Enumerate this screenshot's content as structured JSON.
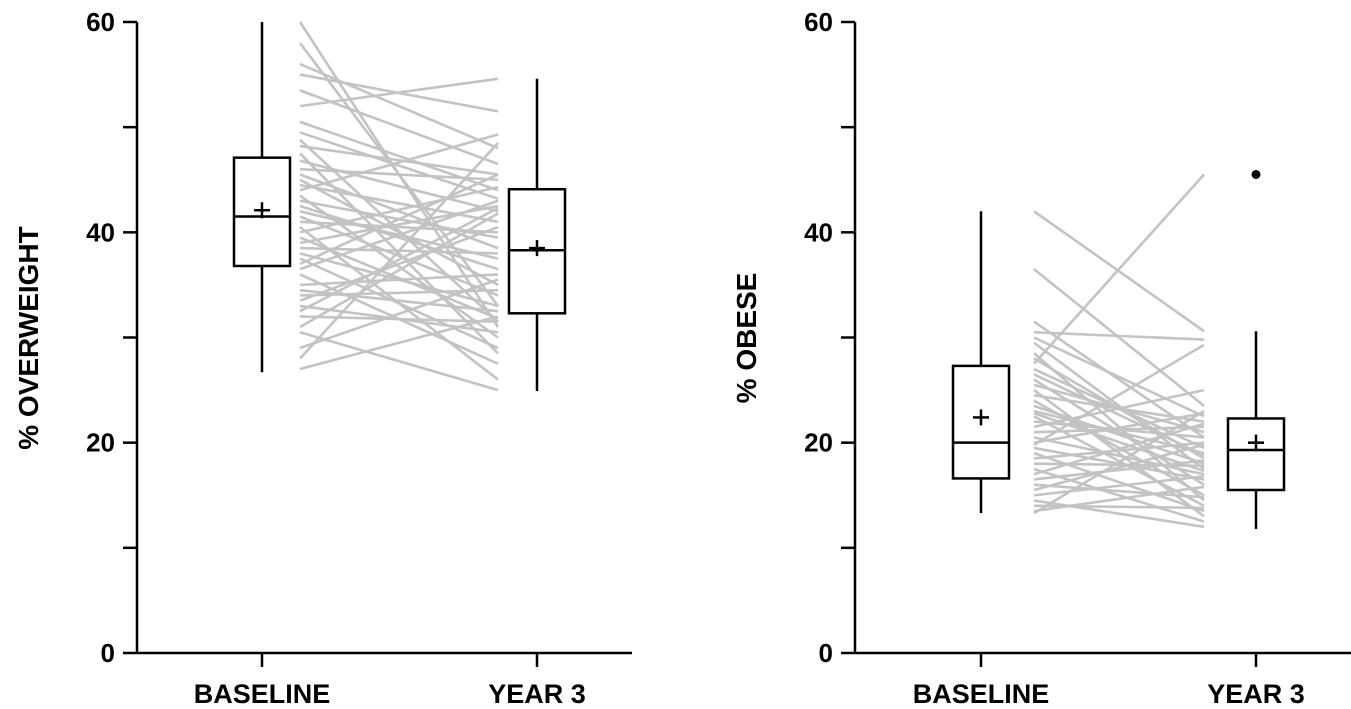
{
  "chart_data": [
    {
      "type": "box",
      "title": "",
      "xlabel": "",
      "ylabel": "% OVERWEIGHT",
      "ylim": [
        0,
        60
      ],
      "yticks": [
        0,
        10,
        20,
        30,
        40,
        50,
        60
      ],
      "ytick_labels": [
        "0",
        "",
        "20",
        "",
        "40",
        "",
        "60"
      ],
      "categories": [
        "BASELINE",
        "YEAR 3"
      ],
      "boxes": [
        {
          "category": "BASELINE",
          "min": 26.7,
          "q1": 36.8,
          "median": 41.5,
          "q3": 47.1,
          "max": 60.0,
          "mean": 42.1,
          "outliers": []
        },
        {
          "category": "YEAR 3",
          "min": 24.9,
          "q1": 32.3,
          "median": 38.3,
          "q3": 44.1,
          "max": 54.6,
          "mean": 38.5,
          "outliers": []
        }
      ],
      "paired_lines": [
        [
          60.0,
          31.0
        ],
        [
          58.0,
          33.0
        ],
        [
          56.0,
          48.0
        ],
        [
          55.0,
          51.5
        ],
        [
          53.5,
          46.5
        ],
        [
          52.0,
          54.6
        ],
        [
          50.5,
          44.0
        ],
        [
          49.5,
          43.2
        ],
        [
          48.8,
          31.5
        ],
        [
          48.2,
          45.5
        ],
        [
          47.5,
          28.5
        ],
        [
          46.8,
          42.0
        ],
        [
          46.0,
          45.0
        ],
        [
          45.5,
          38.5
        ],
        [
          45.0,
          35.0
        ],
        [
          44.5,
          41.0
        ],
        [
          44.0,
          49.3
        ],
        [
          43.5,
          30.0
        ],
        [
          43.0,
          39.5
        ],
        [
          42.5,
          36.5
        ],
        [
          42.0,
          37.5
        ],
        [
          41.5,
          34.0
        ],
        [
          41.0,
          40.0
        ],
        [
          40.5,
          26.0
        ],
        [
          40.0,
          44.3
        ],
        [
          39.5,
          31.8
        ],
        [
          39.0,
          42.5
        ],
        [
          38.5,
          38.0
        ],
        [
          38.0,
          33.0
        ],
        [
          37.5,
          29.0
        ],
        [
          37.0,
          45.5
        ],
        [
          36.5,
          43.0
        ],
        [
          36.0,
          27.5
        ],
        [
          35.0,
          36.0
        ],
        [
          34.5,
          32.5
        ],
        [
          34.0,
          34.5
        ],
        [
          33.5,
          40.5
        ],
        [
          33.0,
          30.5
        ],
        [
          32.5,
          42.3
        ],
        [
          32.0,
          31.5
        ],
        [
          31.0,
          41.8
        ],
        [
          29.0,
          35.5
        ],
        [
          27.0,
          32.0
        ],
        [
          28.0,
          48.5
        ],
        [
          30.5,
          25.0
        ]
      ]
    },
    {
      "type": "box",
      "title": "",
      "xlabel": "",
      "ylabel": "% OBESE",
      "ylim": [
        0,
        60
      ],
      "yticks": [
        0,
        10,
        20,
        30,
        40,
        50,
        60
      ],
      "ytick_labels": [
        "0",
        "",
        "20",
        "",
        "40",
        "",
        "60"
      ],
      "categories": [
        "BASELINE",
        "YEAR 3"
      ],
      "boxes": [
        {
          "category": "BASELINE",
          "min": 13.3,
          "q1": 16.6,
          "median": 20.0,
          "q3": 27.3,
          "max": 42.0,
          "mean": 22.4,
          "outliers": []
        },
        {
          "category": "YEAR 3",
          "min": 11.8,
          "q1": 15.5,
          "median": 19.3,
          "q3": 22.3,
          "max": 30.6,
          "mean": 20.0,
          "outliers": [
            45.5
          ]
        }
      ],
      "paired_lines": [
        [
          42.0,
          30.6
        ],
        [
          36.5,
          23.5
        ],
        [
          31.5,
          20.5
        ],
        [
          30.5,
          29.8
        ],
        [
          30.0,
          22.5
        ],
        [
          29.5,
          17.5
        ],
        [
          28.5,
          14.5
        ],
        [
          28.0,
          18.5
        ],
        [
          27.5,
          45.5
        ],
        [
          27.0,
          19.5
        ],
        [
          26.0,
          16.0
        ],
        [
          25.5,
          21.0
        ],
        [
          25.0,
          13.0
        ],
        [
          24.5,
          22.0
        ],
        [
          24.0,
          15.0
        ],
        [
          23.5,
          18.0
        ],
        [
          23.0,
          19.0
        ],
        [
          22.5,
          14.0
        ],
        [
          22.0,
          20.5
        ],
        [
          21.5,
          25.0
        ],
        [
          21.0,
          21.5
        ],
        [
          20.5,
          17.0
        ],
        [
          20.0,
          22.8
        ],
        [
          19.5,
          16.5
        ],
        [
          19.0,
          13.5
        ],
        [
          18.5,
          20.0
        ],
        [
          18.0,
          17.8
        ],
        [
          17.5,
          12.5
        ],
        [
          17.0,
          21.8
        ],
        [
          16.5,
          18.3
        ],
        [
          16.0,
          14.8
        ],
        [
          15.5,
          19.8
        ],
        [
          15.0,
          16.8
        ],
        [
          14.5,
          12.0
        ],
        [
          14.0,
          13.8
        ],
        [
          13.5,
          15.8
        ],
        [
          13.3,
          23.0
        ],
        [
          19.8,
          29.3
        ],
        [
          22.8,
          17.3
        ],
        [
          26.5,
          18.8
        ]
      ]
    }
  ]
}
